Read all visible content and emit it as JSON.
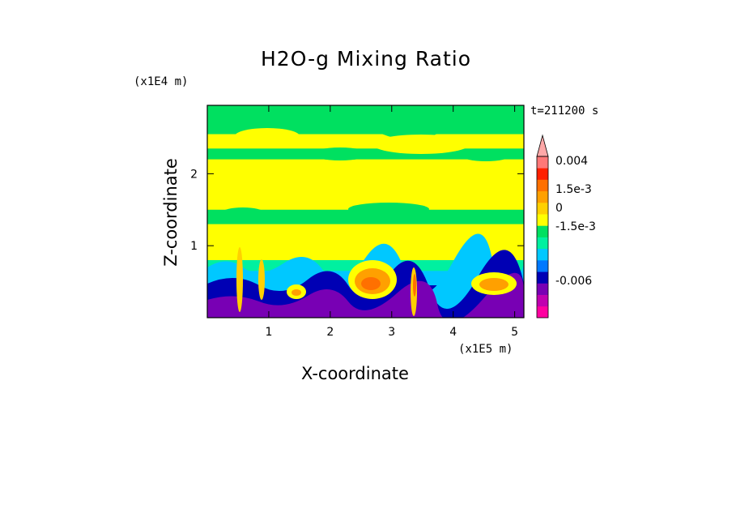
{
  "chart_data": {
    "type": "heatmap",
    "title": "H2O-g Mixing Ratio",
    "xlabel": "X-coordinate",
    "ylabel": "Z-coordinate",
    "x_unit_label": "(x1E5 m)",
    "y_unit_label": "(x1E4 m)",
    "annotation": "t=211200 s",
    "xlim": [
      0,
      5.15
    ],
    "ylim": [
      0,
      2.95
    ],
    "x_ticks": [
      1,
      2,
      3,
      4,
      5
    ],
    "x_tick_labels": [
      "1",
      "2",
      "3",
      "4",
      "5"
    ],
    "y_ticks": [
      1,
      2
    ],
    "y_tick_labels": [
      "1",
      "2"
    ],
    "colorbar": {
      "levels": [
        {
          "color": "#ff00a0"
        },
        {
          "color": "#c000b0"
        },
        {
          "color": "#7800b4"
        },
        {
          "color": "#0000b4"
        },
        {
          "color": "#0078ff"
        },
        {
          "color": "#00c8ff"
        },
        {
          "color": "#00f0a0"
        },
        {
          "color": "#00e060"
        },
        {
          "color": "#ffff00"
        },
        {
          "color": "#ffd000"
        },
        {
          "color": "#ffa000"
        },
        {
          "color": "#ff7000"
        },
        {
          "color": "#ff2000"
        },
        {
          "color": "#ff7878"
        },
        {
          "color": "#ffa8a8"
        }
      ],
      "labels": [
        "0.004",
        "1.5e-3",
        "0",
        "-1.5e-3",
        "-0.006"
      ],
      "extend": "max"
    },
    "field_bands": [
      {
        "z": [
          2.55,
          2.95
        ],
        "color": "#00e060"
      },
      {
        "z": [
          2.35,
          2.55
        ],
        "color": "#ffff00"
      },
      {
        "z": [
          2.2,
          2.35
        ],
        "color": "#00e060"
      },
      {
        "z": [
          1.5,
          2.2
        ],
        "color": "#ffff00"
      },
      {
        "z": [
          1.3,
          1.5
        ],
        "color": "#00e060"
      },
      {
        "z": [
          0.8,
          1.3
        ],
        "color": "#ffff00"
      },
      {
        "z": [
          0.65,
          0.8
        ],
        "color": "#00f0a0"
      },
      {
        "z": [
          0.45,
          0.65
        ],
        "color": "#00c8ff"
      },
      {
        "z": [
          0.3,
          0.45
        ],
        "color": "#0000b4"
      },
      {
        "z": [
          0.0,
          0.3
        ],
        "color": "#7800b4"
      }
    ]
  }
}
